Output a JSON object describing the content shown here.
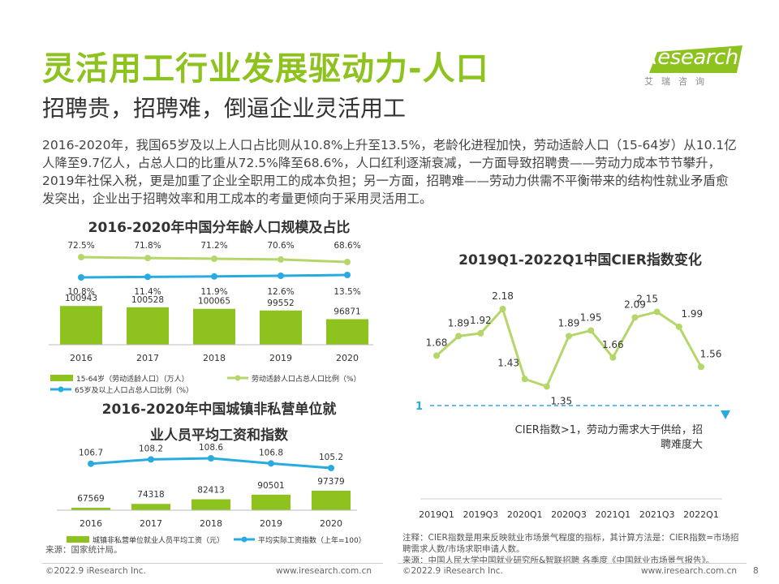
{
  "page": {
    "title": "灵活用工行业发展驱动力-人口",
    "subtitle": "招聘贵，招聘难，倒逼企业灵活用工",
    "intro": "2016-2020年，我国65岁及以上人口占比则从10.8%上升至13.5%，老龄化进程加快，劳动适龄人口（15-64岁）从10.1亿人降至9.7亿人，占总人口的比重从72.5%降至68.6%，人口红利逐渐衰减，一方面导致招聘贵——劳动力成本节节攀升，2019年社保入税，更是加重了企业全职用工的成本负担；另一方面，招聘难——劳动力供需不平衡带来的结构性就业矛盾愈发突出，企业出于招聘效率和用工成本的考量更倾向于采用灵活用工。",
    "logo_main": "iResearch",
    "logo_sub": "艾瑞咨询",
    "page_number": "8",
    "left_source": "来源：国家统计局。",
    "right_note": "注释：CIER指数是用来反映就业市场景气程度的指标，其计算方法是：CIER指数=市场招聘需求人数/市场求职申请人数。",
    "right_source": "来源：中国人民大学中国就业研究所&智联招聘 各季度《中国就业市场景气报告》。",
    "footer_left": "©2022.9 iResearch Inc.",
    "footer_mid": "www.iresearch.com.cn",
    "footer_right_left": "©2022.9 iResearch Inc.",
    "footer_right_mid": "www.iresearch.com.cn"
  },
  "colors": {
    "green": "#8dc21f",
    "lightgreen": "#b5d76a",
    "blue": "#29abe2",
    "dash": "#2aa8e0"
  },
  "chart_data": [
    {
      "type": "bar",
      "title": "2016-2020年中国分年龄人口规模及占比",
      "categories": [
        "2016",
        "2017",
        "2018",
        "2019",
        "2020"
      ],
      "series": [
        {
          "name": "15-64岁（劳动适龄人口）（万人）",
          "type": "bar",
          "values": [
            100943,
            100528,
            100065,
            99552,
            96871
          ],
          "labels": [
            "100943",
            "100528",
            "100065",
            "99552",
            "96871"
          ]
        },
        {
          "name": "劳动适龄人口占总人口比例（%）",
          "type": "line",
          "values": [
            72.5,
            71.8,
            71.2,
            70.6,
            68.6
          ],
          "labels": [
            "72.5%",
            "71.8%",
            "71.2%",
            "70.6%",
            "68.6%"
          ]
        },
        {
          "name": "65岁及以上人口占总人口比例（%）",
          "type": "line",
          "values": [
            10.8,
            11.4,
            11.9,
            12.6,
            13.5
          ],
          "labels": [
            "10.8%",
            "11.4%",
            "11.9%",
            "12.6%",
            "13.5%"
          ]
        }
      ]
    },
    {
      "type": "bar",
      "title": "2016-2020年中国城镇非私营单位就业人员平均工资和指数",
      "title_lines": [
        "2016-2020年中国城镇非私营单位就",
        "业人员平均工资和指数"
      ],
      "categories": [
        "2016",
        "2017",
        "2018",
        "2019",
        "2020"
      ],
      "series": [
        {
          "name": "城镇非私营单位就业人员平均工资（元）",
          "type": "bar",
          "values": [
            67569,
            74318,
            82413,
            90501,
            97379
          ],
          "labels": [
            "67569",
            "74318",
            "82413",
            "90501",
            "97379"
          ]
        },
        {
          "name": "平均实际工资指数（上年=100）",
          "type": "line",
          "values": [
            106.7,
            108.2,
            108.6,
            106.8,
            105.2
          ],
          "labels": [
            "106.7",
            "108.2",
            "108.6",
            "106.8",
            "105.2"
          ]
        }
      ]
    },
    {
      "type": "line",
      "title": "2019Q1-2022Q1中国CIER指数变化",
      "x": [
        "2019Q1",
        "2019Q2",
        "2019Q3",
        "2019Q4",
        "2020Q1",
        "2020Q2",
        "2020Q3",
        "2020Q4",
        "2021Q1",
        "2021Q2",
        "2021Q3",
        "2021Q4",
        "2022Q1"
      ],
      "x_tick_labels": [
        "2019Q1",
        "2019Q3",
        "2020Q1",
        "2020Q3",
        "2021Q1",
        "2021Q3",
        "2022Q1"
      ],
      "values": [
        1.68,
        1.89,
        1.92,
        2.18,
        1.43,
        1.35,
        1.89,
        1.95,
        1.66,
        2.09,
        2.15,
        1.99,
        1.56
      ],
      "labels": [
        "1.68",
        "1.89",
        "1.92",
        "2.18",
        "1.43",
        "1.35",
        "1.89",
        "1.95",
        "1.66",
        "2.09",
        "2.15",
        "1.99",
        "1.56"
      ],
      "reference_line": {
        "value": 1,
        "label": "1"
      },
      "annotation": "CIER指数>1，劳动力需求大于供给，招聘难度大",
      "annotation_lines": [
        "CIER指数>1，劳动力需求大于供给，招",
        "聘难度大"
      ]
    }
  ]
}
